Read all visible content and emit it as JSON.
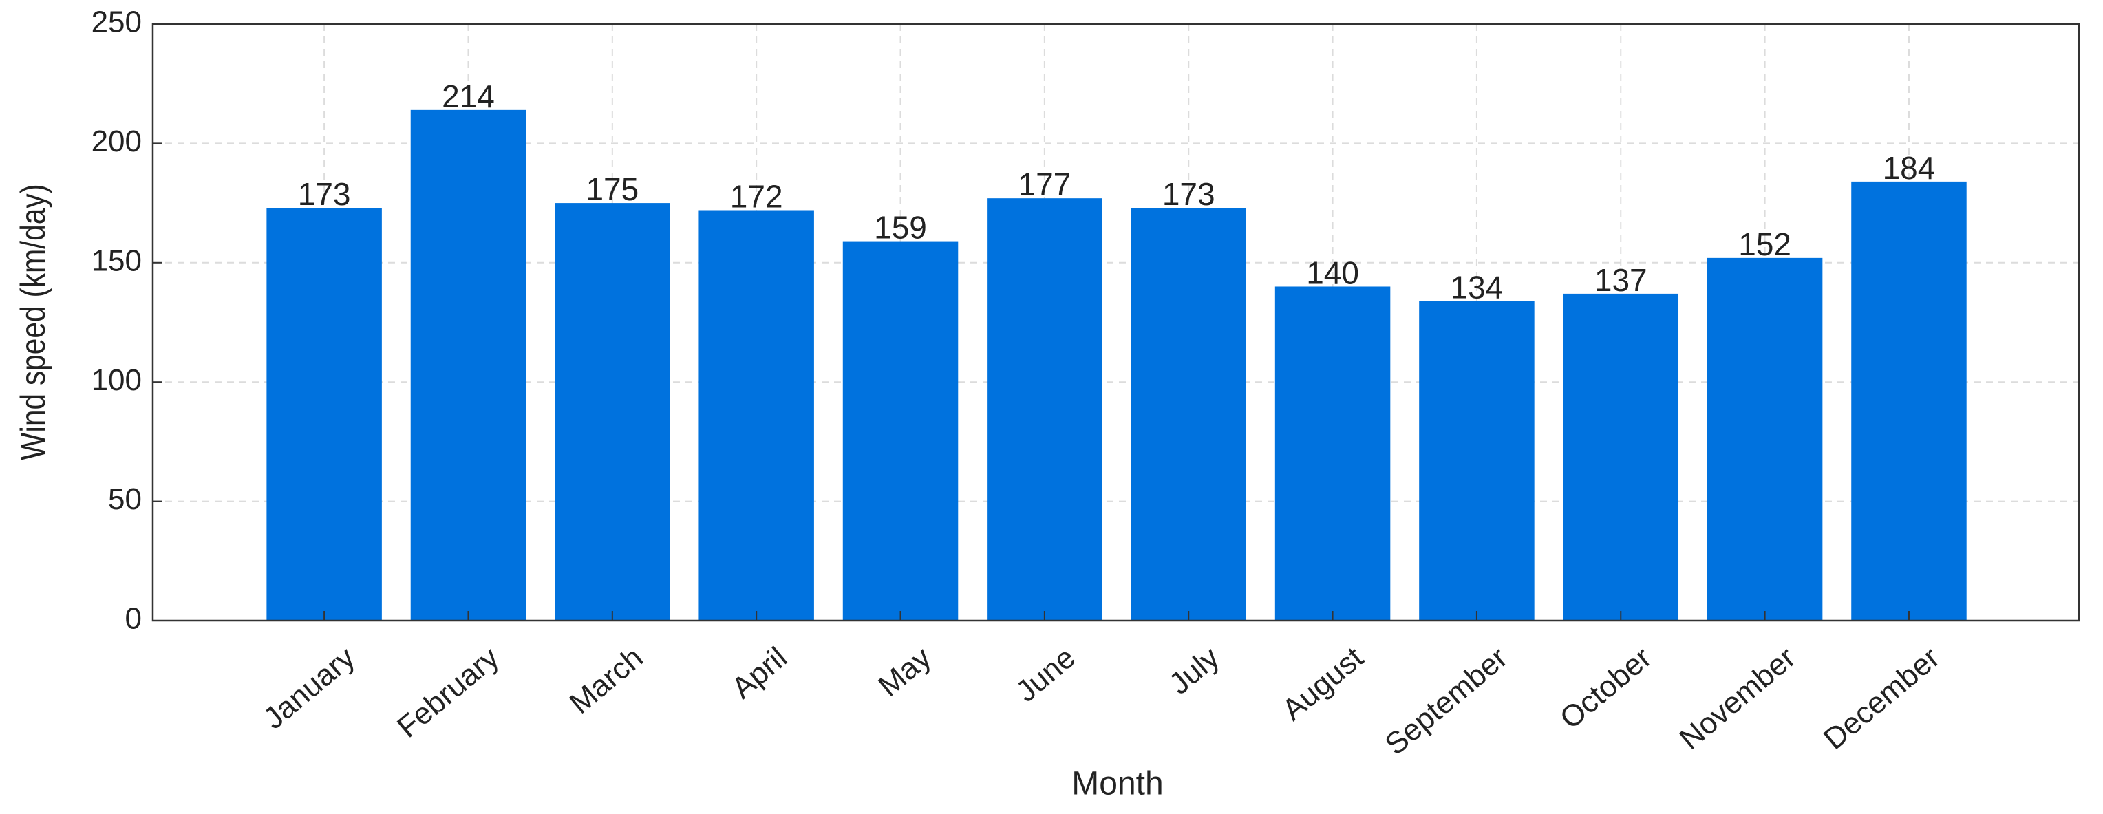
{
  "chart_data": {
    "type": "bar",
    "x_label": "Month",
    "y_label": "Wind speed (km/day)",
    "categories": [
      "January",
      "February",
      "March",
      "April",
      "May",
      "June",
      "July",
      "August",
      "September",
      "October",
      "November",
      "December"
    ],
    "values": [
      173,
      214,
      175,
      172,
      159,
      177,
      173,
      140,
      134,
      137,
      152,
      184
    ],
    "color": "#0072de",
    "ylim": [
      0,
      250
    ],
    "yticks": [
      0,
      50,
      100,
      150,
      200,
      250
    ],
    "grid": true
  }
}
